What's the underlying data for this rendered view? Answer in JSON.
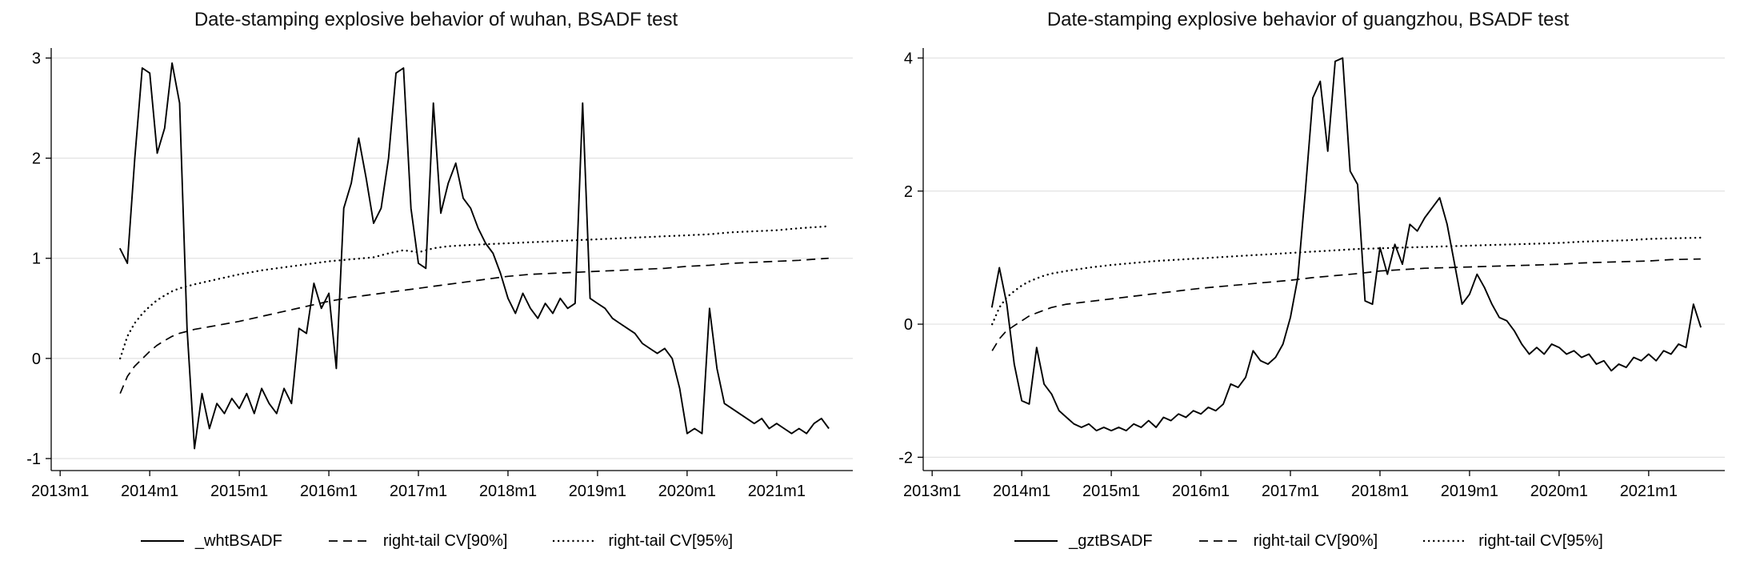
{
  "page": {
    "background": "#ffffff"
  },
  "chart_data": [
    {
      "type": "line",
      "title": "Date-stamping explosive behavior of wuhan, BSADF test",
      "xlabel": "",
      "ylabel": "",
      "xlim": [
        2012.9,
        2021.85
      ],
      "ylim": [
        -1.12,
        3.1
      ],
      "yticks": [
        -1,
        0,
        1,
        2,
        3
      ],
      "xticks": [
        2013,
        2014,
        2015,
        2016,
        2017,
        2018,
        2019,
        2020,
        2021
      ],
      "xtick_labels": [
        "2013m1",
        "2014m1",
        "2015m1",
        "2016m1",
        "2017m1",
        "2018m1",
        "2019m1",
        "2020m1",
        "2021m1"
      ],
      "grid": true,
      "legend_position": "bottom",
      "colors": {
        "line": "#000000",
        "grid": "#e2e2e2",
        "axis": "#000000"
      },
      "series": [
        {
          "name": "_whtBSADF",
          "style": "solid",
          "x_start": 2013.6667,
          "x_step": 0.083333,
          "values": [
            1.1,
            0.95,
            2.0,
            2.9,
            2.85,
            2.05,
            2.3,
            2.95,
            2.55,
            0.3,
            -0.9,
            -0.35,
            -0.7,
            -0.45,
            -0.55,
            -0.4,
            -0.5,
            -0.35,
            -0.55,
            -0.3,
            -0.45,
            -0.55,
            -0.3,
            -0.45,
            0.3,
            0.25,
            0.75,
            0.5,
            0.65,
            -0.1,
            1.5,
            1.75,
            2.2,
            1.8,
            1.35,
            1.5,
            2.0,
            2.85,
            2.9,
            1.5,
            0.95,
            0.9,
            2.55,
            1.45,
            1.75,
            1.95,
            1.6,
            1.5,
            1.3,
            1.15,
            1.05,
            0.85,
            0.6,
            0.45,
            0.65,
            0.5,
            0.4,
            0.55,
            0.45,
            0.6,
            0.5,
            0.55,
            2.55,
            0.6,
            0.55,
            0.5,
            0.4,
            0.35,
            0.3,
            0.25,
            0.15,
            0.1,
            0.05,
            0.1,
            0.0,
            -0.3,
            -0.75,
            -0.7,
            -0.75,
            0.5,
            -0.1,
            -0.45,
            -0.5,
            -0.55,
            -0.6,
            -0.65,
            -0.6,
            -0.7,
            -0.65,
            -0.7,
            -0.75,
            -0.7,
            -0.75,
            -0.65,
            -0.6,
            -0.7
          ]
        },
        {
          "name": "right-tail CV[90%]",
          "style": "dashed",
          "points": [
            [
              2013.67,
              -0.35
            ],
            [
              2013.75,
              -0.18
            ],
            [
              2013.83,
              -0.08
            ],
            [
              2013.92,
              0.0
            ],
            [
              2014.0,
              0.07
            ],
            [
              2014.08,
              0.13
            ],
            [
              2014.17,
              0.18
            ],
            [
              2014.25,
              0.22
            ],
            [
              2014.33,
              0.25
            ],
            [
              2014.5,
              0.29
            ],
            [
              2014.75,
              0.33
            ],
            [
              2015.0,
              0.37
            ],
            [
              2015.25,
              0.42
            ],
            [
              2015.5,
              0.47
            ],
            [
              2015.75,
              0.52
            ],
            [
              2016.0,
              0.57
            ],
            [
              2016.25,
              0.61
            ],
            [
              2016.5,
              0.64
            ],
            [
              2016.75,
              0.67
            ],
            [
              2017.0,
              0.7
            ],
            [
              2017.25,
              0.73
            ],
            [
              2017.5,
              0.76
            ],
            [
              2017.75,
              0.79
            ],
            [
              2018.0,
              0.82
            ],
            [
              2018.25,
              0.84
            ],
            [
              2018.5,
              0.85
            ],
            [
              2018.75,
              0.86
            ],
            [
              2019.0,
              0.87
            ],
            [
              2019.25,
              0.88
            ],
            [
              2019.5,
              0.89
            ],
            [
              2019.75,
              0.9
            ],
            [
              2020.0,
              0.92
            ],
            [
              2020.25,
              0.93
            ],
            [
              2020.5,
              0.95
            ],
            [
              2020.75,
              0.96
            ],
            [
              2021.0,
              0.97
            ],
            [
              2021.25,
              0.98
            ],
            [
              2021.58,
              1.0
            ]
          ]
        },
        {
          "name": "right-tail CV[95%]",
          "style": "dotted",
          "points": [
            [
              2013.67,
              0.0
            ],
            [
              2013.75,
              0.22
            ],
            [
              2013.83,
              0.35
            ],
            [
              2013.92,
              0.45
            ],
            [
              2014.0,
              0.52
            ],
            [
              2014.08,
              0.58
            ],
            [
              2014.17,
              0.63
            ],
            [
              2014.25,
              0.67
            ],
            [
              2014.33,
              0.7
            ],
            [
              2014.5,
              0.74
            ],
            [
              2014.75,
              0.79
            ],
            [
              2015.0,
              0.84
            ],
            [
              2015.25,
              0.88
            ],
            [
              2015.5,
              0.91
            ],
            [
              2015.75,
              0.94
            ],
            [
              2016.0,
              0.97
            ],
            [
              2016.25,
              0.99
            ],
            [
              2016.5,
              1.01
            ],
            [
              2016.67,
              1.05
            ],
            [
              2016.83,
              1.08
            ],
            [
              2017.0,
              1.06
            ],
            [
              2017.17,
              1.1
            ],
            [
              2017.33,
              1.12
            ],
            [
              2017.5,
              1.13
            ],
            [
              2017.75,
              1.14
            ],
            [
              2018.0,
              1.15
            ],
            [
              2018.25,
              1.16
            ],
            [
              2018.5,
              1.17
            ],
            [
              2018.75,
              1.18
            ],
            [
              2019.0,
              1.19
            ],
            [
              2019.25,
              1.2
            ],
            [
              2019.5,
              1.21
            ],
            [
              2019.75,
              1.22
            ],
            [
              2020.0,
              1.23
            ],
            [
              2020.25,
              1.24
            ],
            [
              2020.5,
              1.26
            ],
            [
              2020.75,
              1.27
            ],
            [
              2021.0,
              1.28
            ],
            [
              2021.25,
              1.3
            ],
            [
              2021.58,
              1.32
            ]
          ]
        }
      ]
    },
    {
      "type": "line",
      "title": "Date-stamping explosive behavior of guangzhou, BSADF test",
      "xlabel": "",
      "ylabel": "",
      "xlim": [
        2012.9,
        2021.85
      ],
      "ylim": [
        -2.2,
        4.15
      ],
      "yticks": [
        -2,
        0,
        2,
        4
      ],
      "xticks": [
        2013,
        2014,
        2015,
        2016,
        2017,
        2018,
        2019,
        2020,
        2021
      ],
      "xtick_labels": [
        "2013m1",
        "2014m1",
        "2015m1",
        "2016m1",
        "2017m1",
        "2018m1",
        "2019m1",
        "2020m1",
        "2021m1"
      ],
      "grid": true,
      "legend_position": "bottom",
      "colors": {
        "line": "#000000",
        "grid": "#e2e2e2",
        "axis": "#000000"
      },
      "series": [
        {
          "name": "_gztBSADF",
          "style": "solid",
          "x_start": 2013.6667,
          "x_step": 0.083333,
          "values": [
            0.25,
            0.85,
            0.3,
            -0.6,
            -1.15,
            -1.2,
            -0.35,
            -0.9,
            -1.05,
            -1.3,
            -1.4,
            -1.5,
            -1.55,
            -1.5,
            -1.6,
            -1.55,
            -1.6,
            -1.55,
            -1.6,
            -1.5,
            -1.55,
            -1.45,
            -1.55,
            -1.4,
            -1.45,
            -1.35,
            -1.4,
            -1.3,
            -1.35,
            -1.25,
            -1.3,
            -1.2,
            -0.9,
            -0.95,
            -0.8,
            -0.4,
            -0.55,
            -0.6,
            -0.5,
            -0.3,
            0.1,
            0.7,
            2.0,
            3.4,
            3.65,
            2.6,
            3.95,
            4.0,
            2.3,
            2.1,
            0.35,
            0.3,
            1.15,
            0.75,
            1.2,
            0.9,
            1.5,
            1.4,
            1.6,
            1.75,
            1.9,
            1.5,
            0.9,
            0.3,
            0.45,
            0.75,
            0.55,
            0.3,
            0.1,
            0.05,
            -0.1,
            -0.3,
            -0.45,
            -0.35,
            -0.45,
            -0.3,
            -0.35,
            -0.45,
            -0.4,
            -0.5,
            -0.45,
            -0.6,
            -0.55,
            -0.7,
            -0.6,
            -0.65,
            -0.5,
            -0.55,
            -0.45,
            -0.55,
            -0.4,
            -0.45,
            -0.3,
            -0.35,
            0.3,
            -0.05
          ]
        },
        {
          "name": "right-tail CV[90%]",
          "style": "dashed",
          "points": [
            [
              2013.67,
              -0.4
            ],
            [
              2013.75,
              -0.22
            ],
            [
              2013.83,
              -0.1
            ],
            [
              2013.92,
              -0.02
            ],
            [
              2014.0,
              0.05
            ],
            [
              2014.08,
              0.12
            ],
            [
              2014.17,
              0.17
            ],
            [
              2014.25,
              0.21
            ],
            [
              2014.33,
              0.25
            ],
            [
              2014.5,
              0.3
            ],
            [
              2014.75,
              0.34
            ],
            [
              2015.0,
              0.38
            ],
            [
              2015.25,
              0.42
            ],
            [
              2015.5,
              0.46
            ],
            [
              2015.75,
              0.5
            ],
            [
              2016.0,
              0.54
            ],
            [
              2016.25,
              0.57
            ],
            [
              2016.5,
              0.6
            ],
            [
              2016.75,
              0.63
            ],
            [
              2017.0,
              0.66
            ],
            [
              2017.25,
              0.7
            ],
            [
              2017.5,
              0.73
            ],
            [
              2017.75,
              0.76
            ],
            [
              2018.0,
              0.8
            ],
            [
              2018.25,
              0.82
            ],
            [
              2018.5,
              0.84
            ],
            [
              2018.75,
              0.85
            ],
            [
              2019.0,
              0.86
            ],
            [
              2019.25,
              0.87
            ],
            [
              2019.5,
              0.88
            ],
            [
              2019.75,
              0.89
            ],
            [
              2020.0,
              0.9
            ],
            [
              2020.25,
              0.92
            ],
            [
              2020.5,
              0.93
            ],
            [
              2020.75,
              0.94
            ],
            [
              2021.0,
              0.95
            ],
            [
              2021.25,
              0.97
            ],
            [
              2021.58,
              0.98
            ]
          ]
        },
        {
          "name": "right-tail CV[95%]",
          "style": "dotted",
          "points": [
            [
              2013.67,
              0.0
            ],
            [
              2013.75,
              0.25
            ],
            [
              2013.83,
              0.4
            ],
            [
              2013.92,
              0.5
            ],
            [
              2014.0,
              0.58
            ],
            [
              2014.08,
              0.64
            ],
            [
              2014.17,
              0.69
            ],
            [
              2014.25,
              0.73
            ],
            [
              2014.33,
              0.76
            ],
            [
              2014.5,
              0.8
            ],
            [
              2014.75,
              0.85
            ],
            [
              2015.0,
              0.89
            ],
            [
              2015.25,
              0.92
            ],
            [
              2015.5,
              0.95
            ],
            [
              2015.75,
              0.97
            ],
            [
              2016.0,
              0.99
            ],
            [
              2016.25,
              1.01
            ],
            [
              2016.5,
              1.03
            ],
            [
              2016.75,
              1.05
            ],
            [
              2017.0,
              1.07
            ],
            [
              2017.25,
              1.09
            ],
            [
              2017.5,
              1.11
            ],
            [
              2017.75,
              1.13
            ],
            [
              2018.0,
              1.14
            ],
            [
              2018.25,
              1.15
            ],
            [
              2018.5,
              1.16
            ],
            [
              2018.75,
              1.17
            ],
            [
              2019.0,
              1.18
            ],
            [
              2019.25,
              1.19
            ],
            [
              2019.5,
              1.2
            ],
            [
              2019.75,
              1.21
            ],
            [
              2020.0,
              1.22
            ],
            [
              2020.25,
              1.24
            ],
            [
              2020.5,
              1.25
            ],
            [
              2020.75,
              1.26
            ],
            [
              2021.0,
              1.28
            ],
            [
              2021.25,
              1.29
            ],
            [
              2021.58,
              1.3
            ]
          ]
        }
      ]
    }
  ]
}
